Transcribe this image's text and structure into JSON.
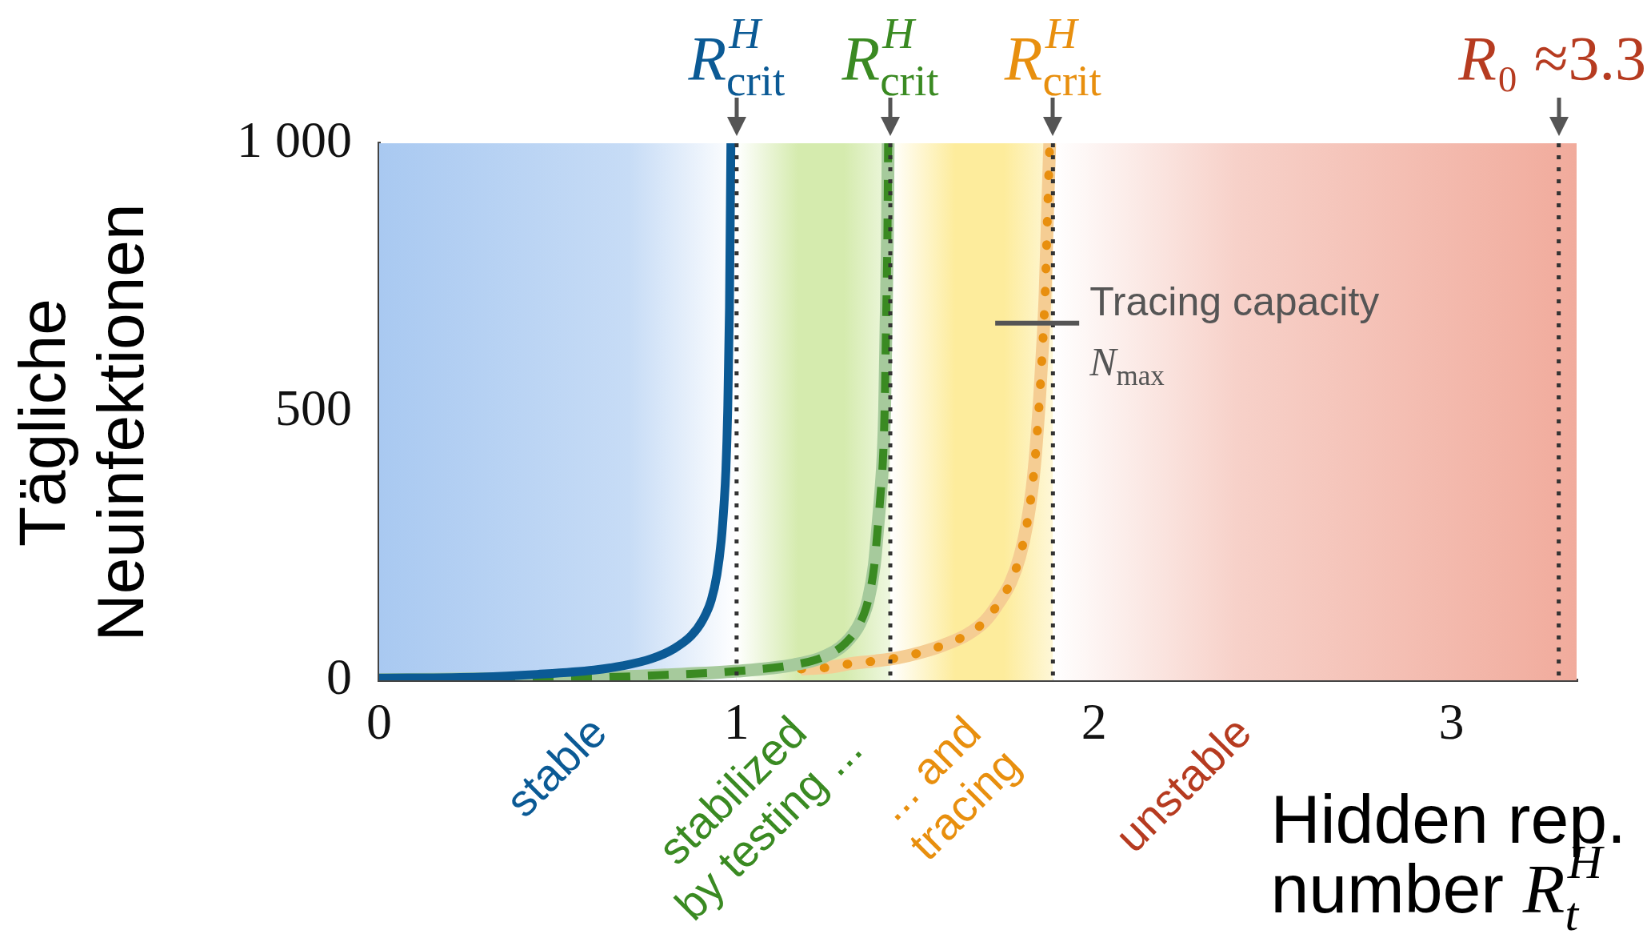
{
  "chart_data": {
    "type": "line",
    "xlabel": "Hidden rep.\nnumber R$_{t}$$^{H}$",
    "ylabel": "Tägliche\nNeuinfektionen",
    "xlim": [
      0,
      3.35
    ],
    "xticks": [
      0,
      1,
      2,
      3
    ],
    "ylim": [
      0,
      1000
    ],
    "yticks": [
      0,
      500,
      {
        "value": 1000,
        "label": "1 000"
      }
    ],
    "grid": false,
    "legend": false,
    "series": [
      {
        "color": "#0b5a95",
        "line_style": "solid",
        "x": [
          0,
          0.282,
          0.442,
          0.601,
          0.681,
          0.761,
          0.825,
          0.873,
          0.905,
          0.929,
          0.945,
          0.957,
          0.965,
          0.97,
          0.975,
          0.98,
          0.984
        ],
        "values": [
          4,
          6,
          11,
          19,
          27,
          40,
          59,
          83,
          112,
          149,
          197,
          260,
          330,
          391,
          500,
          692,
          1000
        ]
      },
      {
        "color": "#3a8a22",
        "line_style": "dashed",
        "x": [
          0,
          0.3,
          0.601,
          0.8,
          1.0,
          1.161,
          1.241,
          1.304,
          1.345,
          1.368,
          1.385,
          1.396,
          1.404,
          1.41,
          1.414,
          1.418,
          1.422,
          1.424
        ],
        "values": [
          1,
          3,
          5,
          10,
          17,
          29,
          43,
          69,
          106,
          149,
          213,
          293,
          357,
          420,
          500,
          658,
          830,
          1000
        ]
      },
      {
        "color": "#e88f0e",
        "line_style": "dotted",
        "x": [
          1.18,
          1.257,
          1.32,
          1.388,
          1.452,
          1.516,
          1.581,
          1.645,
          1.696,
          1.734,
          1.767,
          1.792,
          1.812,
          1.827,
          1.837,
          1.848,
          1.857,
          1.863,
          1.87,
          1.876
        ],
        "values": [
          21,
          24,
          31,
          36,
          42,
          52,
          66,
          85,
          111,
          145,
          183,
          230,
          290,
          359,
          427,
          530,
          633,
          718,
          872,
          1000
        ]
      }
    ],
    "bands": [
      {
        "axis": "x",
        "from": 0,
        "to": 1,
        "label": "stable",
        "color": "#a9c9f1"
      },
      {
        "axis": "x",
        "from": 1,
        "to": 1.43,
        "label": "stabilized\nby testing ...",
        "color": "#d5ebae"
      },
      {
        "axis": "x",
        "from": 1.43,
        "to": 1.885,
        "label": "... and\ntracing",
        "color": "#fdec9c"
      },
      {
        "axis": "x",
        "from": 1.885,
        "to": 3.35,
        "label": "unstable",
        "color": "#f1ab9c"
      }
    ],
    "ref_lines": [
      {
        "axis": "x",
        "value": 1,
        "label": "R$^{H}$$_{crit}$",
        "color": "#333333",
        "line_style": "dotted"
      },
      {
        "axis": "x",
        "value": 1.43,
        "label": "R$^{H}$$_{crit}$",
        "color": "#333333",
        "line_style": "dotted"
      },
      {
        "axis": "x",
        "value": 1.885,
        "label": "R$^{H}$$_{crit}$",
        "color": "#333333",
        "line_style": "dotted"
      },
      {
        "axis": "x",
        "value": 3.3,
        "label": "R₀ ≈3.3",
        "color": "#333333",
        "line_style": "dotted"
      }
    ],
    "annotations": [
      {
        "text": "Tracing capacity\nN$_{max}$",
        "x": 1.86,
        "y": 665
      }
    ]
  }
}
